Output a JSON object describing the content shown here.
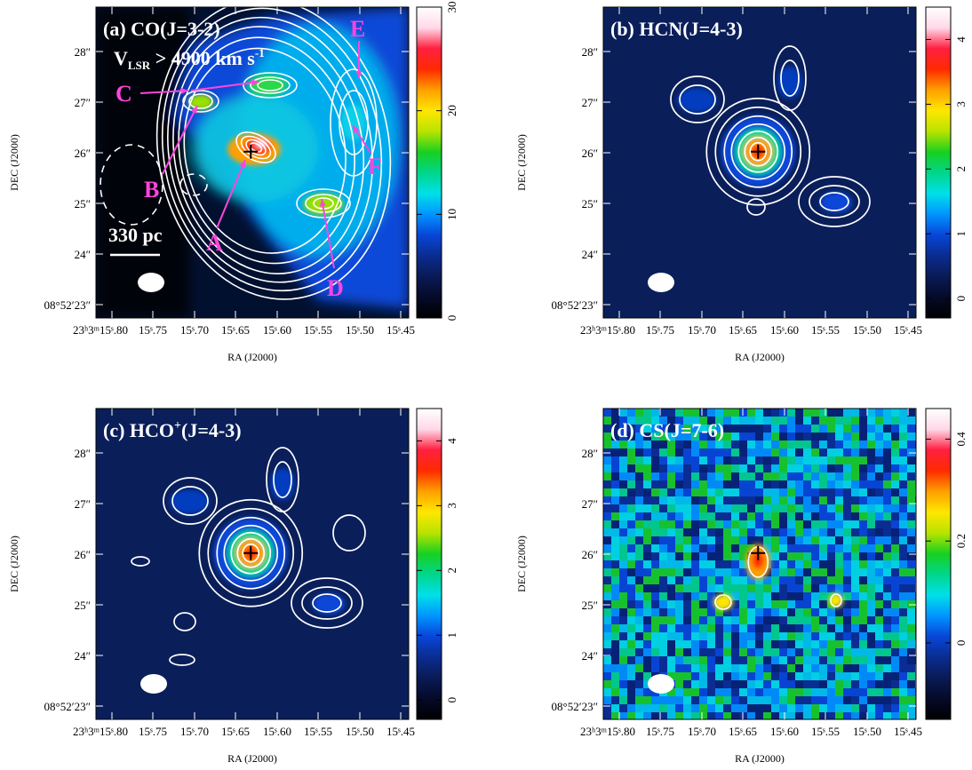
{
  "colors": {
    "annotation": "#ff44dd",
    "contour": "#ffffff",
    "beam": "#ffffff",
    "colormap": [
      "#000000",
      "#050a28",
      "#0a1a55",
      "#0a2c90",
      "#0846d8",
      "#0094ff",
      "#00e0e8",
      "#00d68a",
      "#18d020",
      "#b8e400",
      "#ffe600",
      "#ffa000",
      "#ff2a00",
      "#ff2040",
      "#ffd8e8",
      "#ffffff"
    ]
  },
  "axes": {
    "x_label": "RA (J2000)",
    "y_label": "DEC (J2000)",
    "x_ticks": [
      "23ʰ3ᵐ15ˢ.80",
      "15ˢ.75",
      "15ˢ.70",
      "15ˢ.65",
      "15ˢ.60",
      "15ˢ.55",
      "15ˢ.50",
      "15ˢ.45"
    ],
    "y_ticks": [
      "28″",
      "27″",
      "26″",
      "25″",
      "24″",
      "08°52′23″"
    ]
  },
  "panels": [
    {
      "id": "a",
      "title": "(a) CO(J=3-2)",
      "subtitle_prefix": "V",
      "subtitle_sub": "LSR",
      "subtitle_rest": " > 4900 km s",
      "subtitle_sup": "-1",
      "scale_bar_label": "330 pc",
      "colorbar_ticks": [
        "0",
        "10",
        "20",
        "30"
      ],
      "colorbar_range": [
        0,
        30
      ],
      "annotations": [
        "A",
        "B",
        "C",
        "D",
        "E",
        "F"
      ]
    },
    {
      "id": "b",
      "title": "(b) HCN(J=4-3)",
      "colorbar_ticks": [
        "0",
        "1",
        "2",
        "3",
        "4"
      ],
      "colorbar_range": [
        -0.3,
        4.5
      ]
    },
    {
      "id": "c",
      "title_main": "(c) HCO",
      "title_sup": "+",
      "title_rest": "(J=4-3)",
      "colorbar_ticks": [
        "0",
        "1",
        "2",
        "3",
        "4"
      ],
      "colorbar_range": [
        -0.3,
        4.5
      ]
    },
    {
      "id": "d",
      "title": "(d) CS(J=7-6)",
      "colorbar_ticks": [
        "0",
        "0.2",
        "0.4"
      ],
      "colorbar_range": [
        -0.15,
        0.46
      ]
    }
  ]
}
